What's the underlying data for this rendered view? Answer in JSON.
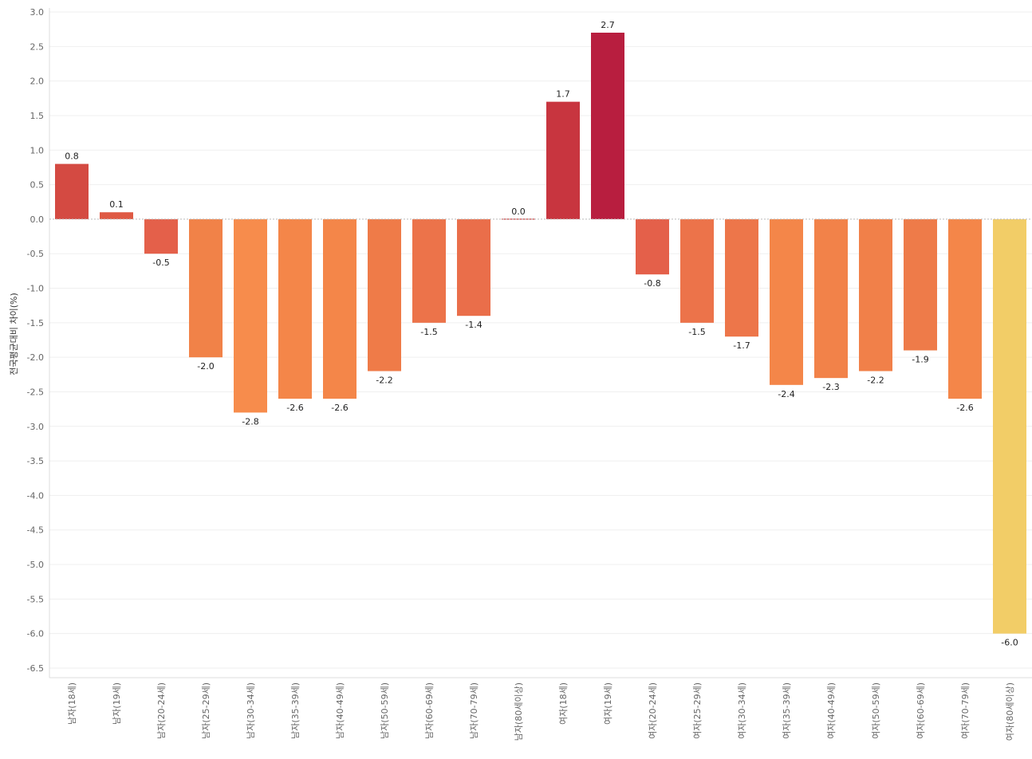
{
  "chart_data": {
    "type": "bar",
    "title": "",
    "xlabel": "",
    "ylabel": "전국평균대비 차이(%)",
    "ylim": [
      -6.5,
      3.0
    ],
    "ytick_step": 0.5,
    "grid": true,
    "categories": [
      "남자(18세)",
      "남자(19세)",
      "남자(20-24세)",
      "남자(25-29세)",
      "남자(30-34세)",
      "남자(35-39세)",
      "남자(40-49세)",
      "남자(50-59세)",
      "남자(60-69세)",
      "남자(70-79세)",
      "남자(80세이상)",
      "여자(18세)",
      "여자(19세)",
      "여자(20-24세)",
      "여자(25-29세)",
      "여자(30-34세)",
      "여자(35-39세)",
      "여자(40-49세)",
      "여자(50-59세)",
      "여자(60-69세)",
      "여자(70-79세)",
      "여자(80세이상)"
    ],
    "values": [
      0.8,
      0.1,
      -0.5,
      -2.0,
      -2.8,
      -2.6,
      -2.6,
      -2.2,
      -1.5,
      -1.4,
      0.0,
      1.7,
      2.7,
      -0.8,
      -1.5,
      -1.7,
      -2.4,
      -2.3,
      -2.2,
      -1.9,
      -2.6,
      -6.0
    ],
    "value_labels": [
      "0.8",
      "0.1",
      "-0.5",
      "-2.0",
      "-2.8",
      "-2.6",
      "-2.6",
      "-2.2",
      "-1.5",
      "-1.4",
      "0.0",
      "1.7",
      "2.7",
      "-0.8",
      "-1.5",
      "-1.7",
      "-2.4",
      "-2.3",
      "-2.2",
      "-1.9",
      "-2.6",
      "-6.0"
    ],
    "colors": [
      "#d44a42",
      "#df5a44",
      "#e4604a",
      "#f18248",
      "#f78c4c",
      "#f48649",
      "#f48649",
      "#ef7b48",
      "#ec734a",
      "#ea6e4a",
      "#c93f3f",
      "#c8353f",
      "#b81e3f",
      "#e4604a",
      "#ec734a",
      "#ed764a",
      "#f48649",
      "#f28249",
      "#f18049",
      "#ee7b49",
      "#f48649",
      "#f2cd67"
    ]
  }
}
